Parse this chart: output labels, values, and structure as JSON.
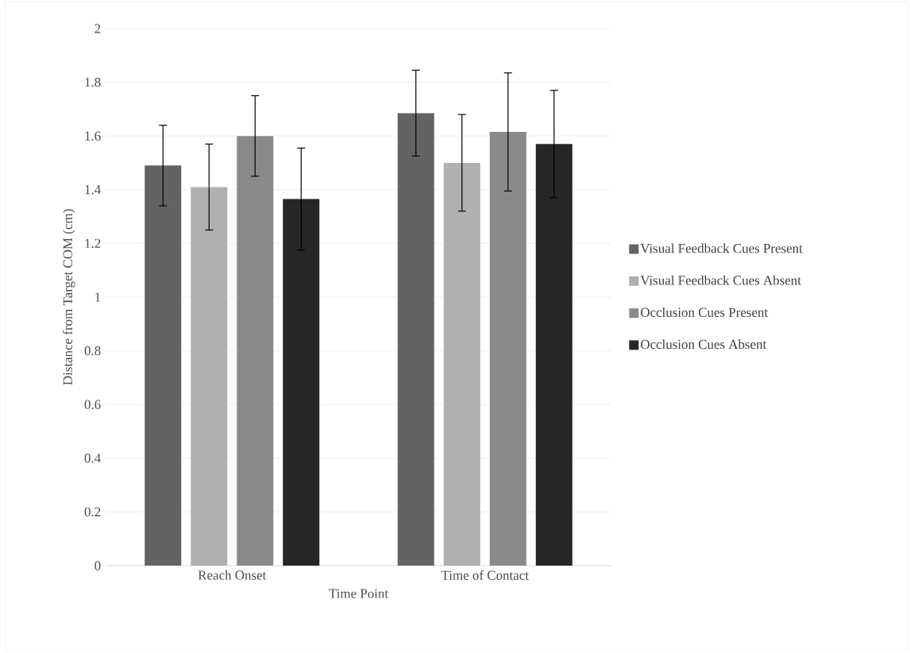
{
  "chart_data": {
    "type": "bar",
    "xlabel": "Time Point",
    "ylabel": "Distance from Target COM (cm)",
    "categories": [
      "Reach Onset",
      "Time of Contact"
    ],
    "series": [
      {
        "name": "Visual Feedback Cues Present",
        "color": "#636363",
        "values": [
          1.49,
          1.685
        ],
        "errors": [
          0.15,
          0.16
        ]
      },
      {
        "name": "Visual Feedback Cues Absent",
        "color": "#b0b0b0",
        "values": [
          1.41,
          1.5
        ],
        "errors": [
          0.16,
          0.18
        ]
      },
      {
        "name": "Occlusion Cues Present",
        "color": "#8a8a8a",
        "values": [
          1.6,
          1.615
        ],
        "errors": [
          0.15,
          0.22
        ]
      },
      {
        "name": "Occlusion Cues Absent",
        "color": "#262626",
        "values": [
          1.365,
          1.57
        ],
        "errors": [
          0.19,
          0.2
        ]
      }
    ],
    "ylim": [
      0,
      2
    ],
    "yticks": [
      0,
      0.2,
      0.4,
      0.6,
      0.8,
      1,
      1.2,
      1.4,
      1.6,
      1.8,
      2
    ],
    "grid": "y",
    "legend": "right"
  }
}
